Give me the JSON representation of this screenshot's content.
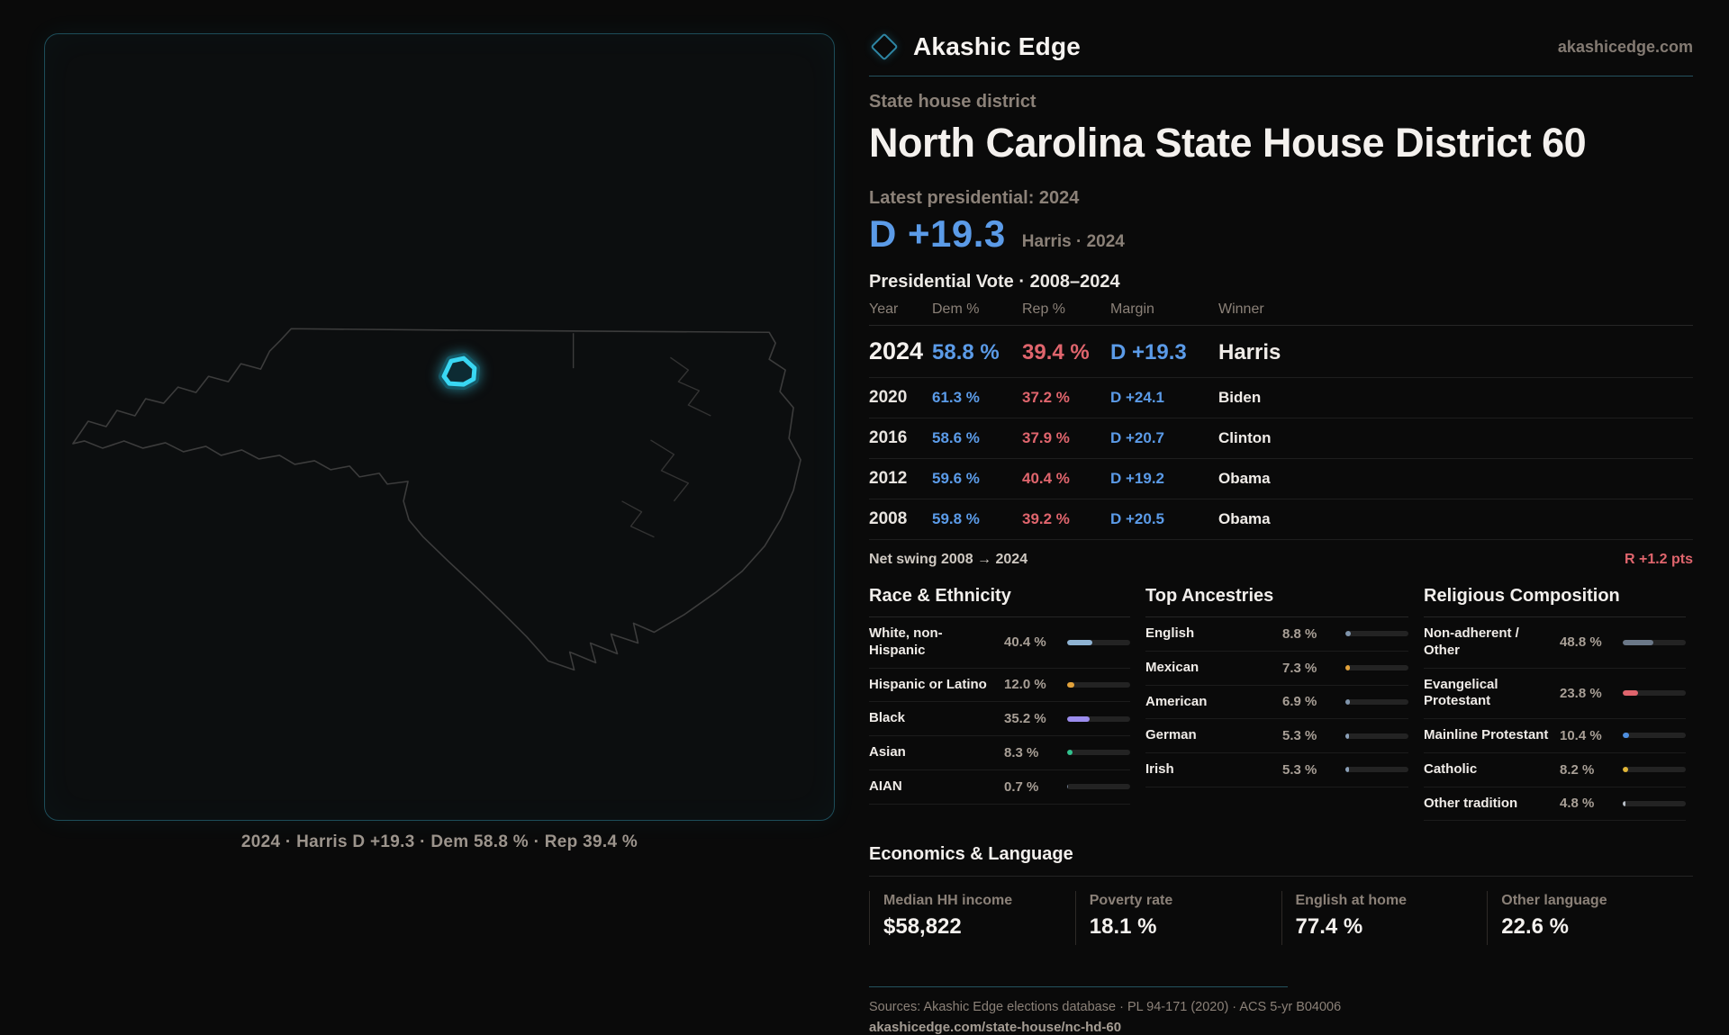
{
  "brand": {
    "name": "Akashic Edge",
    "domain": "akashicedge.com",
    "accent": "#2e86a4"
  },
  "page": {
    "eyebrow": "State house district",
    "title": "North Carolina State House District 60"
  },
  "latest": {
    "label": "Latest presidential: 2024",
    "margin": "D +19.3",
    "note": "Harris · 2024"
  },
  "vote_table": {
    "title": "Presidential Vote · 2008–2024",
    "headers": [
      "Year",
      "Dem %",
      "Rep %",
      "Margin",
      "Winner"
    ],
    "rows": [
      {
        "year": "2024",
        "dem": "58.8 %",
        "rep": "39.4 %",
        "margin": "D +19.3",
        "winner": "Harris"
      },
      {
        "year": "2020",
        "dem": "61.3 %",
        "rep": "37.2 %",
        "margin": "D +24.1",
        "winner": "Biden"
      },
      {
        "year": "2016",
        "dem": "58.6 %",
        "rep": "37.9 %",
        "margin": "D +20.7",
        "winner": "Clinton"
      },
      {
        "year": "2012",
        "dem": "59.6 %",
        "rep": "40.4 %",
        "margin": "D +19.2",
        "winner": "Obama"
      },
      {
        "year": "2008",
        "dem": "59.8 %",
        "rep": "39.2 %",
        "margin": "D +20.5",
        "winner": "Obama"
      }
    ],
    "dem_color": "#5b9be8",
    "rep_color": "#e0656d"
  },
  "net_swing": {
    "label": "Net swing 2008 → 2024",
    "value": "R +1.2 pts",
    "value_color": "#e0656d"
  },
  "race": {
    "title": "Race & Ethnicity",
    "items": [
      {
        "label": "White, non-Hispanic",
        "value": "40.4 %",
        "pct": 40.4,
        "color": "#8fb3d3"
      },
      {
        "label": "Hispanic or Latino",
        "value": "12.0 %",
        "pct": 12.0,
        "color": "#e2a23b"
      },
      {
        "label": "Black",
        "value": "35.2 %",
        "pct": 35.2,
        "color": "#9b8ced"
      },
      {
        "label": "Asian",
        "value": "8.3 %",
        "pct": 8.3,
        "color": "#31c28e"
      },
      {
        "label": "AIAN",
        "value": "0.7 %",
        "pct": 0.7,
        "color": "#6b7888"
      }
    ]
  },
  "ancestries": {
    "title": "Top Ancestries",
    "items": [
      {
        "label": "English",
        "value": "8.8 %",
        "pct": 8.8,
        "color": "#7f94ab"
      },
      {
        "label": "Mexican",
        "value": "7.3 %",
        "pct": 7.3,
        "color": "#e2a23b"
      },
      {
        "label": "American",
        "value": "6.9 %",
        "pct": 6.9,
        "color": "#7f94ab"
      },
      {
        "label": "German",
        "value": "5.3 %",
        "pct": 5.3,
        "color": "#8ba0b8"
      },
      {
        "label": "Irish",
        "value": "5.3 %",
        "pct": 5.3,
        "color": "#8ba0b8"
      }
    ]
  },
  "religion": {
    "title": "Religious Composition",
    "items": [
      {
        "label": "Non-adherent / Other",
        "value": "48.8 %",
        "pct": 48.8,
        "color": "#6b7888"
      },
      {
        "label": "Evangelical Protestant",
        "value": "23.8 %",
        "pct": 23.8,
        "color": "#e0656d"
      },
      {
        "label": "Mainline Protestant",
        "value": "10.4 %",
        "pct": 10.4,
        "color": "#4e8fe0"
      },
      {
        "label": "Catholic",
        "value": "8.2 %",
        "pct": 8.2,
        "color": "#e2b637"
      },
      {
        "label": "Other tradition",
        "value": "4.8 %",
        "pct": 4.8,
        "color": "#b9c0c8"
      }
    ]
  },
  "economics": {
    "title": "Economics & Language",
    "stats": [
      {
        "label": "Median HH income",
        "value": "$58,822"
      },
      {
        "label": "Poverty rate",
        "value": "18.1 %"
      },
      {
        "label": "English at home",
        "value": "77.4 %"
      },
      {
        "label": "Other language",
        "value": "22.6 %"
      }
    ]
  },
  "map": {
    "caption": "2024 · Harris D +19.3 · Dem 58.8 % · Rep 39.4 %",
    "highlight_color": "#39d7f3"
  },
  "footer": {
    "sources": "Sources: Akashic Edge elections database · PL 94-171 (2020) · ACS 5-yr B04006",
    "link": "akashicedge.com/state-house/nc-hd-60"
  }
}
